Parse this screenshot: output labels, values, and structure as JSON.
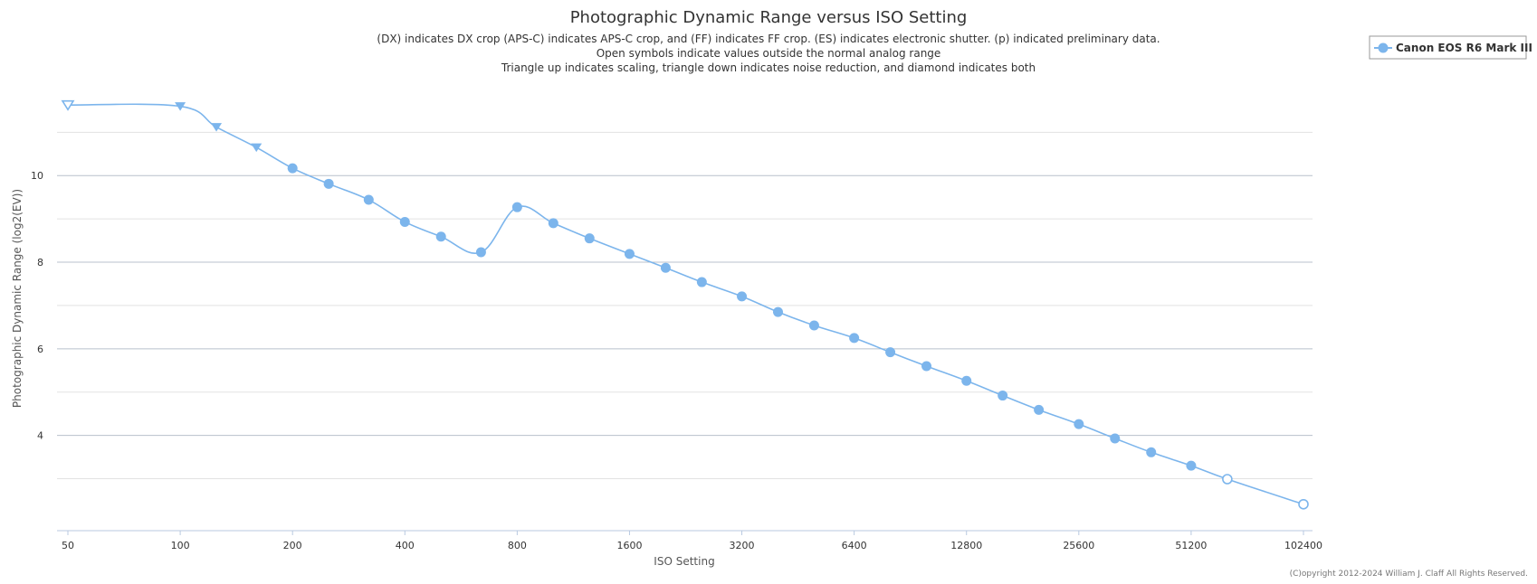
{
  "chart_data": {
    "type": "line",
    "title": "Photographic Dynamic Range versus ISO Setting",
    "subtitle_lines": [
      "(DX) indicates DX crop (APS-C) indicates APS-C crop, and (FF) indicates FF crop. (ES) indicates electronic shutter. (p) indicated preliminary data.",
      "Open symbols indicate values outside the normal analog range",
      "Triangle up indicates scaling, triangle down indicates noise reduction, and diamond indicates both"
    ],
    "xlabel": "ISO Setting",
    "ylabel": "Photographic Dynamic Range (log2(EV))",
    "x_scale": "log2",
    "x_ticks": [
      50,
      100,
      200,
      400,
      800,
      1600,
      3200,
      6400,
      12800,
      25600,
      51200,
      102400
    ],
    "y_ticks": [
      4,
      6,
      8,
      10
    ],
    "ylim": [
      1.8,
      11.8
    ],
    "grid": true,
    "legend_position": "top-right",
    "series": [
      {
        "name": "Canon EOS R6 Mark III",
        "color": "#7cb5ec",
        "points": [
          {
            "x": 50,
            "y": 11.63,
            "marker": "triangle-down",
            "open": true
          },
          {
            "x": 100,
            "y": 11.6,
            "marker": "triangle-down",
            "open": false
          },
          {
            "x": 125,
            "y": 11.12,
            "marker": "triangle-down",
            "open": false
          },
          {
            "x": 160,
            "y": 10.65,
            "marker": "triangle-down",
            "open": false
          },
          {
            "x": 200,
            "y": 10.17,
            "marker": "circle",
            "open": false
          },
          {
            "x": 250,
            "y": 9.81,
            "marker": "circle",
            "open": false
          },
          {
            "x": 320,
            "y": 9.44,
            "marker": "circle",
            "open": false
          },
          {
            "x": 400,
            "y": 8.93,
            "marker": "circle",
            "open": false
          },
          {
            "x": 500,
            "y": 8.59,
            "marker": "circle",
            "open": false
          },
          {
            "x": 640,
            "y": 8.23,
            "marker": "circle",
            "open": false
          },
          {
            "x": 800,
            "y": 9.27,
            "marker": "circle",
            "open": false
          },
          {
            "x": 1000,
            "y": 8.9,
            "marker": "circle",
            "open": false
          },
          {
            "x": 1250,
            "y": 8.55,
            "marker": "circle",
            "open": false
          },
          {
            "x": 1600,
            "y": 8.19,
            "marker": "circle",
            "open": false
          },
          {
            "x": 2000,
            "y": 7.87,
            "marker": "circle",
            "open": false
          },
          {
            "x": 2500,
            "y": 7.54,
            "marker": "circle",
            "open": false
          },
          {
            "x": 3200,
            "y": 7.21,
            "marker": "circle",
            "open": false
          },
          {
            "x": 4000,
            "y": 6.85,
            "marker": "circle",
            "open": false
          },
          {
            "x": 5000,
            "y": 6.54,
            "marker": "circle",
            "open": false
          },
          {
            "x": 6400,
            "y": 6.25,
            "marker": "circle",
            "open": false
          },
          {
            "x": 8000,
            "y": 5.92,
            "marker": "circle",
            "open": false
          },
          {
            "x": 10000,
            "y": 5.6,
            "marker": "circle",
            "open": false
          },
          {
            "x": 12800,
            "y": 5.26,
            "marker": "circle",
            "open": false
          },
          {
            "x": 16000,
            "y": 4.92,
            "marker": "circle",
            "open": false
          },
          {
            "x": 20000,
            "y": 4.59,
            "marker": "circle",
            "open": false
          },
          {
            "x": 25600,
            "y": 4.26,
            "marker": "circle",
            "open": false
          },
          {
            "x": 32000,
            "y": 3.93,
            "marker": "circle",
            "open": false
          },
          {
            "x": 40000,
            "y": 3.61,
            "marker": "circle",
            "open": false
          },
          {
            "x": 51200,
            "y": 3.3,
            "marker": "circle",
            "open": false
          },
          {
            "x": 64000,
            "y": 2.99,
            "marker": "circle",
            "open": true
          },
          {
            "x": 102400,
            "y": 2.41,
            "marker": "circle",
            "open": true
          }
        ]
      }
    ]
  },
  "credits": "(C)opyright 2012-2024 William J. Claff All Rights Reserved."
}
